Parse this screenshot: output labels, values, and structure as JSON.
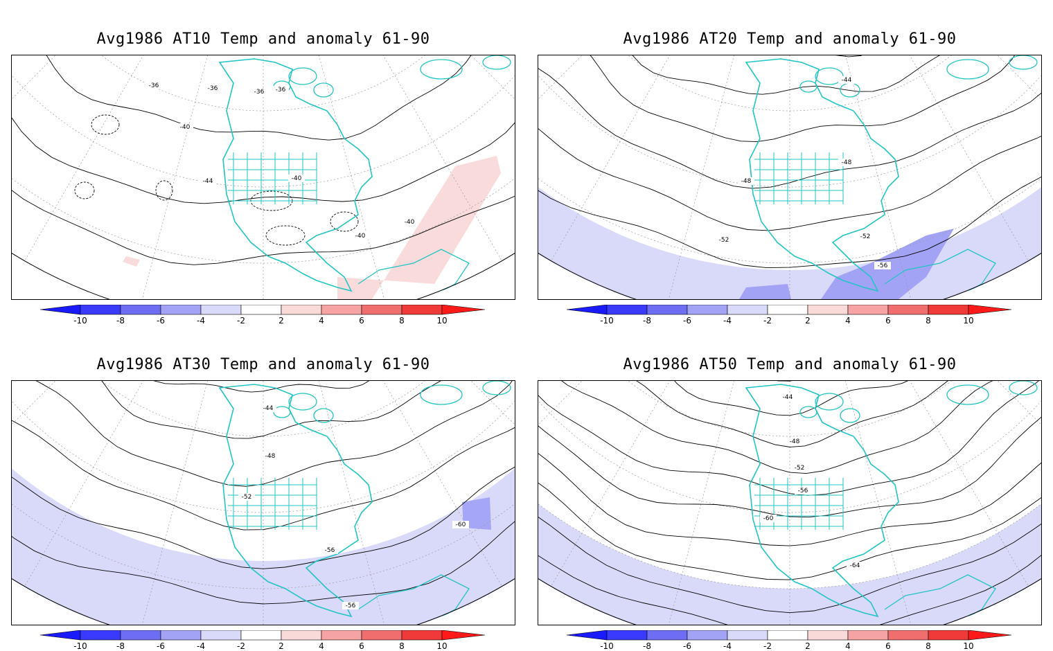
{
  "panels": [
    {
      "title": "Avg1986 AT10 Temp and anomaly 61-90",
      "contour_labels": [
        "-36",
        "-36",
        "-36",
        "-36",
        "-40",
        "-44",
        "-40",
        "-40",
        "-40"
      ],
      "anomaly_note": "mostly near zero, small positive (2-4) patches"
    },
    {
      "title": "Avg1986 AT20 Temp and anomaly 61-90",
      "contour_labels": [
        "-44",
        "-48",
        "-48",
        "-52",
        "-52",
        "-56"
      ],
      "anomaly_note": "broad negative (-2 to -4) band, stronger (-4 to -6) patches"
    },
    {
      "title": "Avg1986 AT30 Temp and anomaly 61-90",
      "contour_labels": [
        "-44",
        "-48",
        "-52",
        "-56",
        "-56",
        "-60"
      ],
      "anomaly_note": "broad negative (-2 to -4) band, -4 to -6 patch at -60"
    },
    {
      "title": "Avg1986 AT50 Temp and anomaly 61-90",
      "contour_labels": [
        "-44",
        "-48",
        "-52",
        "-56",
        "-60",
        "-64"
      ],
      "anomaly_note": "broad negative (-2 to -4) band"
    }
  ],
  "colorbar": {
    "tick_labels": [
      "-10",
      "-8",
      "-6",
      "-4",
      "-2",
      "2",
      "4",
      "6",
      "8",
      "10"
    ],
    "colors": [
      "#1a1aff",
      "#3a3aff",
      "#6e6ef5",
      "#a3a3f5",
      "#d9d9fa",
      "#ffffff",
      "#fad9d9",
      "#f5a3a3",
      "#f06e6e",
      "#f03a3a",
      "#ff1a1a"
    ]
  },
  "colors": {
    "coastline": "#22c4c4",
    "grid": "#9a9a9a",
    "contour": "#000000",
    "neg_anomaly_light": "#d9d9fa",
    "neg_anomaly_mid": "#a3a3f5",
    "pos_anomaly_light": "#fad9d9"
  }
}
